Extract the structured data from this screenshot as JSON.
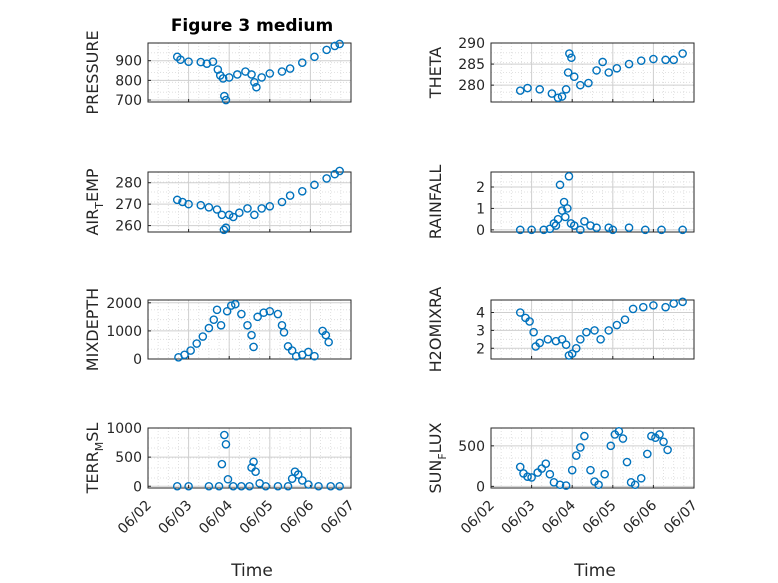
{
  "chart_data": {
    "title": "Figure 3 medium",
    "type": "scatter",
    "marker": "open-circle",
    "series_color": "#0072BD",
    "grid": "major+minor",
    "x_axis": {
      "label": "Time",
      "unit": "days",
      "range": [
        "06/02",
        "06/07"
      ],
      "ticks": [
        "06/02",
        "06/03",
        "06/04",
        "06/05",
        "06/06",
        "06/07"
      ],
      "data_start": "06/02 ~17:00",
      "data_end": "06/06 ~22:00"
    },
    "panels": [
      {
        "ylabel": "PRESSURE",
        "ylim": [
          690,
          990
        ],
        "yticks": [
          "700",
          "800",
          "900"
        ],
        "points": [
          [
            0.72,
            920
          ],
          [
            0.8,
            905
          ],
          [
            1.0,
            895
          ],
          [
            1.3,
            893
          ],
          [
            1.45,
            885
          ],
          [
            1.6,
            895
          ],
          [
            1.72,
            855
          ],
          [
            1.78,
            825
          ],
          [
            1.85,
            810
          ],
          [
            1.88,
            720
          ],
          [
            1.92,
            700
          ],
          [
            2.0,
            815
          ],
          [
            2.2,
            830
          ],
          [
            2.4,
            845
          ],
          [
            2.55,
            830
          ],
          [
            2.62,
            790
          ],
          [
            2.67,
            765
          ],
          [
            2.8,
            815
          ],
          [
            3.0,
            835
          ],
          [
            3.3,
            845
          ],
          [
            3.5,
            860
          ],
          [
            3.8,
            890
          ],
          [
            4.1,
            920
          ],
          [
            4.4,
            955
          ],
          [
            4.6,
            975
          ],
          [
            4.72,
            985
          ]
        ]
      },
      {
        "ylabel": "THETA",
        "ylim": [
          276,
          290
        ],
        "yticks": [
          "280",
          "285",
          "290"
        ],
        "points": [
          [
            0.72,
            278.7
          ],
          [
            0.9,
            279.3
          ],
          [
            1.2,
            279
          ],
          [
            1.5,
            278
          ],
          [
            1.65,
            277
          ],
          [
            1.75,
            277.3
          ],
          [
            1.85,
            279
          ],
          [
            1.9,
            283
          ],
          [
            1.93,
            287.5
          ],
          [
            1.98,
            286.5
          ],
          [
            2.05,
            282
          ],
          [
            2.2,
            280
          ],
          [
            2.4,
            280.5
          ],
          [
            2.6,
            283.5
          ],
          [
            2.75,
            285.5
          ],
          [
            2.9,
            283
          ],
          [
            3.1,
            284
          ],
          [
            3.4,
            285
          ],
          [
            3.7,
            285.8
          ],
          [
            4.0,
            286.2
          ],
          [
            4.3,
            286
          ],
          [
            4.5,
            286
          ],
          [
            4.72,
            287.5
          ]
        ]
      },
      {
        "ylabel": "AIR_TEMP",
        "ylim": [
          257,
          285
        ],
        "yticks": [
          "260",
          "270",
          "280"
        ],
        "points": [
          [
            0.72,
            272
          ],
          [
            0.85,
            271
          ],
          [
            1.0,
            270
          ],
          [
            1.3,
            269.5
          ],
          [
            1.5,
            268.5
          ],
          [
            1.7,
            267.5
          ],
          [
            1.82,
            265
          ],
          [
            1.87,
            258
          ],
          [
            1.92,
            259
          ],
          [
            2.0,
            265
          ],
          [
            2.1,
            264
          ],
          [
            2.25,
            266
          ],
          [
            2.45,
            268
          ],
          [
            2.62,
            265
          ],
          [
            2.8,
            268
          ],
          [
            3.0,
            269
          ],
          [
            3.3,
            271
          ],
          [
            3.5,
            274
          ],
          [
            3.8,
            276
          ],
          [
            4.1,
            279
          ],
          [
            4.4,
            282
          ],
          [
            4.6,
            284
          ],
          [
            4.72,
            285.5
          ]
        ]
      },
      {
        "ylabel": "RAINFALL",
        "ylim": [
          -0.1,
          2.7
        ],
        "yticks": [
          "0",
          "1",
          "2"
        ],
        "points": [
          [
            0.72,
            0
          ],
          [
            1.0,
            0
          ],
          [
            1.3,
            0
          ],
          [
            1.45,
            0.05
          ],
          [
            1.55,
            0.3
          ],
          [
            1.6,
            0.2
          ],
          [
            1.65,
            0.5
          ],
          [
            1.7,
            2.1
          ],
          [
            1.75,
            0.9
          ],
          [
            1.8,
            1.3
          ],
          [
            1.83,
            0.6
          ],
          [
            1.88,
            1.0
          ],
          [
            1.92,
            2.5
          ],
          [
            1.97,
            0.3
          ],
          [
            2.05,
            0.2
          ],
          [
            2.2,
            0
          ],
          [
            2.3,
            0.4
          ],
          [
            2.45,
            0.2
          ],
          [
            2.6,
            0.1
          ],
          [
            2.9,
            0.1
          ],
          [
            3.0,
            0
          ],
          [
            3.4,
            0.1
          ],
          [
            3.8,
            0
          ],
          [
            4.2,
            0
          ],
          [
            4.72,
            0
          ]
        ]
      },
      {
        "ylabel": "MIXDEPTH",
        "ylim": [
          0,
          2100
        ],
        "yticks": [
          "0",
          "1000",
          "2000"
        ],
        "points": [
          [
            0.75,
            60
          ],
          [
            0.9,
            150
          ],
          [
            1.05,
            300
          ],
          [
            1.2,
            550
          ],
          [
            1.35,
            800
          ],
          [
            1.5,
            1100
          ],
          [
            1.62,
            1400
          ],
          [
            1.7,
            1750
          ],
          [
            1.8,
            1200
          ],
          [
            1.95,
            1700
          ],
          [
            2.05,
            1900
          ],
          [
            2.15,
            1950
          ],
          [
            2.3,
            1600
          ],
          [
            2.45,
            1200
          ],
          [
            2.55,
            850
          ],
          [
            2.6,
            430
          ],
          [
            2.7,
            1500
          ],
          [
            2.85,
            1650
          ],
          [
            3.0,
            1700
          ],
          [
            3.2,
            1600
          ],
          [
            3.3,
            1200
          ],
          [
            3.35,
            950
          ],
          [
            3.45,
            450
          ],
          [
            3.55,
            300
          ],
          [
            3.65,
            100
          ],
          [
            3.8,
            150
          ],
          [
            3.95,
            250
          ],
          [
            4.1,
            100
          ],
          [
            4.3,
            1000
          ],
          [
            4.38,
            850
          ],
          [
            4.45,
            600
          ]
        ]
      },
      {
        "ylabel": "H2OMIXRA",
        "ylim": [
          1.4,
          4.7
        ],
        "yticks": [
          "2",
          "3",
          "4"
        ],
        "points": [
          [
            0.72,
            4
          ],
          [
            0.85,
            3.7
          ],
          [
            0.95,
            3.5
          ],
          [
            1.05,
            2.9
          ],
          [
            1.1,
            2.1
          ],
          [
            1.2,
            2.3
          ],
          [
            1.4,
            2.5
          ],
          [
            1.6,
            2.4
          ],
          [
            1.75,
            2.5
          ],
          [
            1.85,
            2.2
          ],
          [
            1.92,
            1.6
          ],
          [
            2.0,
            1.7
          ],
          [
            2.1,
            2.0
          ],
          [
            2.2,
            2.5
          ],
          [
            2.35,
            2.9
          ],
          [
            2.55,
            3.0
          ],
          [
            2.7,
            2.5
          ],
          [
            2.9,
            3.0
          ],
          [
            3.1,
            3.3
          ],
          [
            3.3,
            3.6
          ],
          [
            3.5,
            4.2
          ],
          [
            3.75,
            4.3
          ],
          [
            4.0,
            4.4
          ],
          [
            4.3,
            4.3
          ],
          [
            4.5,
            4.5
          ],
          [
            4.72,
            4.6
          ]
        ]
      },
      {
        "ylabel": "TERR_MSL",
        "ylim": [
          -30,
          1000
        ],
        "yticks": [
          "0",
          "500",
          "1000"
        ],
        "points": [
          [
            0.72,
            0
          ],
          [
            1.0,
            0
          ],
          [
            1.5,
            0
          ],
          [
            1.75,
            0
          ],
          [
            1.82,
            380
          ],
          [
            1.88,
            880
          ],
          [
            1.92,
            720
          ],
          [
            1.97,
            120
          ],
          [
            2.1,
            0
          ],
          [
            2.3,
            0
          ],
          [
            2.5,
            0
          ],
          [
            2.55,
            320
          ],
          [
            2.6,
            420
          ],
          [
            2.65,
            250
          ],
          [
            2.75,
            50
          ],
          [
            2.9,
            0
          ],
          [
            3.2,
            0
          ],
          [
            3.45,
            0
          ],
          [
            3.55,
            130
          ],
          [
            3.62,
            250
          ],
          [
            3.7,
            200
          ],
          [
            3.8,
            100
          ],
          [
            3.95,
            30
          ],
          [
            4.2,
            0
          ],
          [
            4.5,
            0
          ],
          [
            4.72,
            0
          ]
        ]
      },
      {
        "ylabel": "SUN_FLUX",
        "ylim": [
          -20,
          720
        ],
        "yticks": [
          "0",
          "500"
        ],
        "points": [
          [
            0.72,
            240
          ],
          [
            0.8,
            160
          ],
          [
            0.9,
            120
          ],
          [
            1.0,
            110
          ],
          [
            1.15,
            170
          ],
          [
            1.25,
            220
          ],
          [
            1.35,
            280
          ],
          [
            1.45,
            150
          ],
          [
            1.55,
            50
          ],
          [
            1.7,
            20
          ],
          [
            1.85,
            10
          ],
          [
            2.0,
            200
          ],
          [
            2.1,
            380
          ],
          [
            2.2,
            480
          ],
          [
            2.3,
            620
          ],
          [
            2.45,
            200
          ],
          [
            2.55,
            60
          ],
          [
            2.65,
            20
          ],
          [
            2.8,
            150
          ],
          [
            2.95,
            500
          ],
          [
            3.05,
            640
          ],
          [
            3.15,
            680
          ],
          [
            3.25,
            590
          ],
          [
            3.35,
            300
          ],
          [
            3.45,
            50
          ],
          [
            3.55,
            20
          ],
          [
            3.7,
            100
          ],
          [
            3.85,
            400
          ],
          [
            3.95,
            620
          ],
          [
            4.05,
            600
          ],
          [
            4.15,
            640
          ],
          [
            4.25,
            550
          ],
          [
            4.35,
            450
          ]
        ]
      }
    ]
  }
}
